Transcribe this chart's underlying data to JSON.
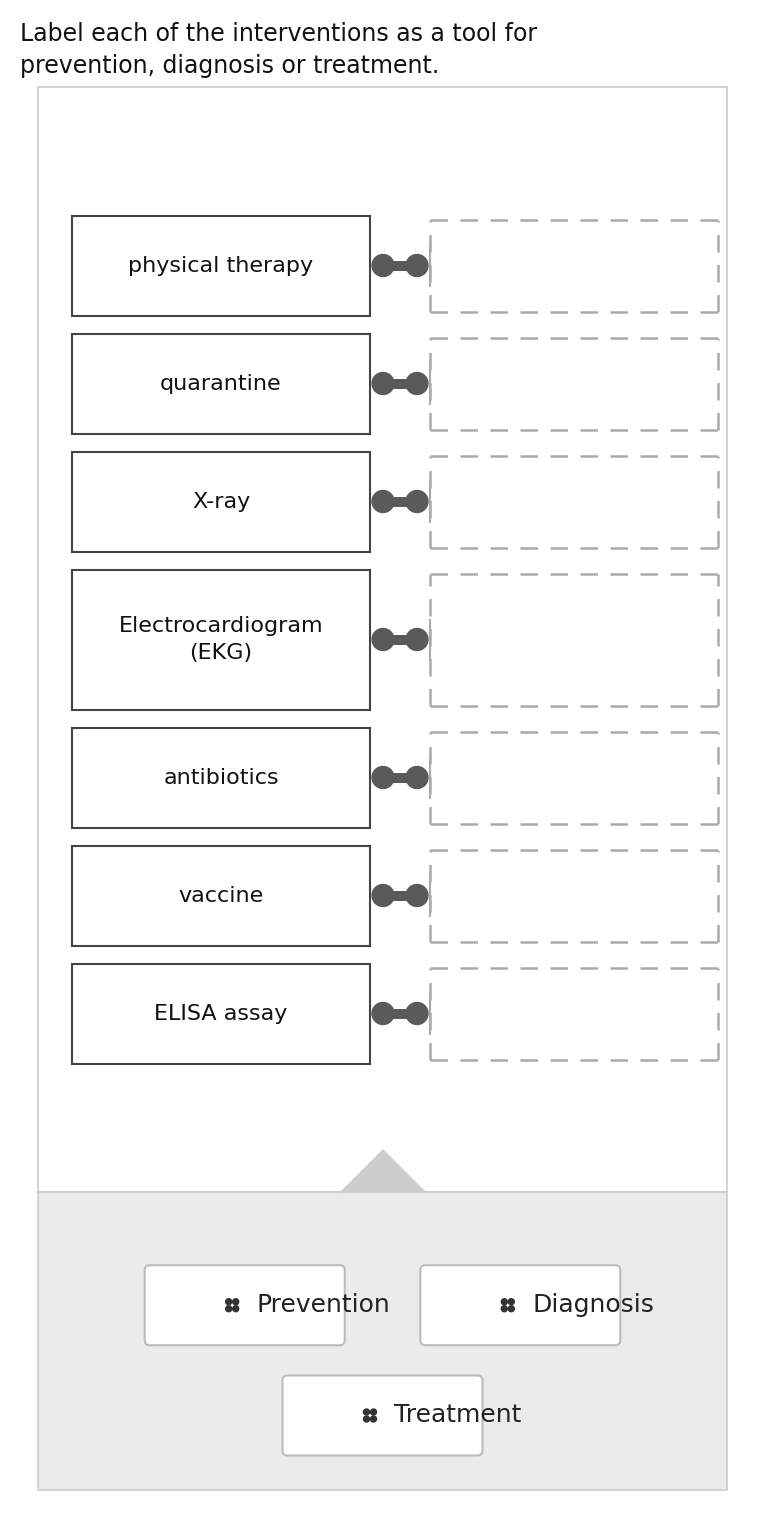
{
  "title_line1": "Label each of the interventions as a tool for",
  "title_line2": "prevention, diagnosis or treatment.",
  "interventions": [
    "physical therapy",
    "quarantine",
    "X-ray",
    "Electrocardiogram\n(EKG)",
    "antibiotics",
    "vaccine",
    "ELISA assay"
  ],
  "categories": [
    "Prevention",
    "Diagnosis",
    "Treatment"
  ],
  "bg_color": "#ffffff",
  "bottom_bg": "#ebebeb",
  "title_fontsize": 17,
  "item_fontsize": 16,
  "category_fontsize": 18,
  "connector_color": "#5a5a5a",
  "dash_color": "#aaaaaa",
  "box_edge_color": "#444444",
  "panel_edge_color": "#cccccc"
}
